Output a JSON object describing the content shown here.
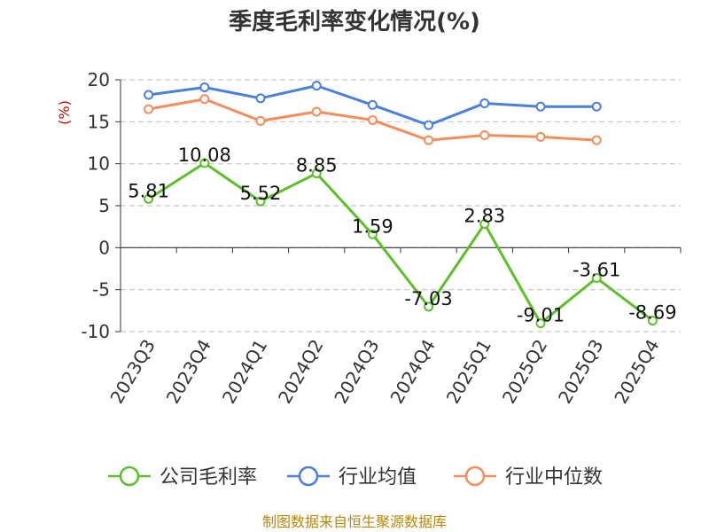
{
  "chart_data": {
    "type": "line",
    "title": "季度毛利率变化情况(%)",
    "ylabel": "(%)",
    "xlabel": "",
    "categories": [
      "2023Q3",
      "2023Q4",
      "2024Q1",
      "2024Q2",
      "2024Q3",
      "2024Q4",
      "2025Q1",
      "2025Q2",
      "2025Q3",
      "2025Q4"
    ],
    "ylim": [
      -10,
      20
    ],
    "yticks": [
      "20",
      "15",
      "10",
      "5",
      "0",
      "-5",
      "-10"
    ],
    "grid": "horizontal-dashed",
    "legend_position": "bottom",
    "series": [
      {
        "name": "公司毛利率",
        "color": "#5cbf2a",
        "values": [
          5.81,
          10.08,
          5.52,
          8.85,
          1.59,
          -7.03,
          2.83,
          -9.01,
          -3.61,
          -8.69
        ],
        "labels": [
          "5.81",
          "10.08",
          "5.52",
          "8.85",
          "1.59",
          "-7.03",
          "2.83",
          "-9.01",
          "-3.61",
          "-8.69"
        ]
      },
      {
        "name": "行业均值",
        "color": "#4a7fdc",
        "values": [
          18.2,
          19.1,
          17.8,
          19.3,
          17.0,
          14.6,
          17.2,
          16.8,
          16.8,
          null
        ]
      },
      {
        "name": "行业中位数",
        "color": "#f58c5a",
        "values": [
          16.5,
          17.7,
          15.1,
          16.2,
          15.2,
          12.8,
          13.4,
          13.2,
          12.8,
          null
        ]
      }
    ]
  },
  "source": "制图数据来自恒生聚源数据库"
}
